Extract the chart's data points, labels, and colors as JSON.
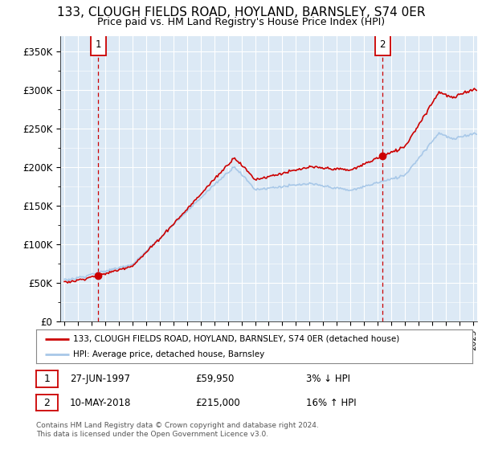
{
  "title_line1": "133, CLOUGH FIELDS ROAD, HOYLAND, BARNSLEY, S74 0ER",
  "title_line2": "Price paid vs. HM Land Registry's House Price Index (HPI)",
  "ylabel_ticks": [
    "£0",
    "£50K",
    "£100K",
    "£150K",
    "£200K",
    "£250K",
    "£300K",
    "£350K"
  ],
  "ylabel_values": [
    0,
    50000,
    100000,
    150000,
    200000,
    250000,
    300000,
    350000
  ],
  "ylim": [
    0,
    370000
  ],
  "xlim_start": 1994.7,
  "xlim_end": 2025.3,
  "sale1_date": 1997.49,
  "sale1_price": 59950,
  "sale2_date": 2018.36,
  "sale2_price": 215000,
  "legend_line1": "133, CLOUGH FIELDS ROAD, HOYLAND, BARNSLEY, S74 0ER (detached house)",
  "legend_line2": "HPI: Average price, detached house, Barnsley",
  "annot1_num": "1",
  "annot1_date": "27-JUN-1997",
  "annot1_price": "£59,950",
  "annot1_hpi": "3% ↓ HPI",
  "annot2_num": "2",
  "annot2_date": "10-MAY-2018",
  "annot2_price": "£215,000",
  "annot2_hpi": "16% ↑ HPI",
  "footer": "Contains HM Land Registry data © Crown copyright and database right 2024.\nThis data is licensed under the Open Government Licence v3.0.",
  "hpi_color": "#a8c8e8",
  "sale_color": "#cc0000",
  "bg_color": "#dce9f5",
  "grid_color": "#ffffff",
  "box_color": "#cc0000",
  "title_fontsize": 11,
  "subtitle_fontsize": 9
}
